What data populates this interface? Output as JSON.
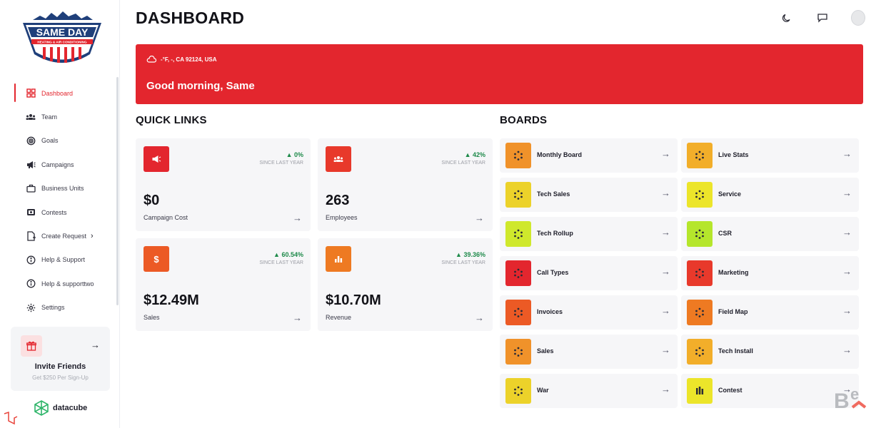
{
  "brand": {
    "logo_top": "SAME DAY",
    "logo_sub": "HEATING & AIR CONDITIONING",
    "partner": "datacube"
  },
  "sidebar": {
    "items": [
      {
        "label": "Dashboard",
        "icon": "grid-icon",
        "active": true
      },
      {
        "label": "Team",
        "icon": "team-icon"
      },
      {
        "label": "Goals",
        "icon": "target-icon"
      },
      {
        "label": "Campaigns",
        "icon": "megaphone-icon"
      },
      {
        "label": "Business Units",
        "icon": "briefcase-icon"
      },
      {
        "label": "Contests",
        "icon": "trophy-icon"
      },
      {
        "label": "Create Request",
        "icon": "document-plus-icon",
        "has_submenu": true
      },
      {
        "label": "Help & Support",
        "icon": "info-icon"
      },
      {
        "label": "Help & supporttwo",
        "icon": "info-icon"
      },
      {
        "label": "Settings",
        "icon": "gear-icon"
      }
    ],
    "invite": {
      "title": "Invite Friends",
      "subtitle": "Get $250 Per Sign-Up"
    }
  },
  "header": {
    "title": "DASHBOARD"
  },
  "banner": {
    "location": "-°F, -, CA 92124, USA",
    "greeting": "Good morning, Same",
    "color": "#e3262e"
  },
  "quick_links": {
    "title": "QUICK LINKS",
    "cards": [
      {
        "value": "$0",
        "label": "Campaign Cost",
        "change": "0%",
        "since": "SINCE LAST YEAR",
        "icon": "megaphone-icon",
        "color": "#e3262e"
      },
      {
        "value": "263",
        "label": "Employees",
        "change": "42%",
        "since": "SINCE LAST YEAR",
        "icon": "team-icon",
        "color": "#e8392b"
      },
      {
        "value": "$12.49M",
        "label": "Sales",
        "change": "60.54%",
        "since": "SINCE LAST YEAR",
        "icon": "dollar-icon",
        "color": "#ec5a25"
      },
      {
        "value": "$10.70M",
        "label": "Revenue",
        "change": "39.36%",
        "since": "SINCE LAST YEAR",
        "icon": "bar-chart-icon",
        "color": "#ee7a22"
      }
    ]
  },
  "boards": {
    "title": "BOARDS",
    "items": [
      {
        "label": "Monthly Board",
        "color": "#f0922a"
      },
      {
        "label": "Live Stats",
        "color": "#f2ae2a"
      },
      {
        "label": "Tech Sales",
        "color": "#ecd22a"
      },
      {
        "label": "Service",
        "color": "#ece52a"
      },
      {
        "label": "Tech Rollup",
        "color": "#cfe82c"
      },
      {
        "label": "CSR",
        "color": "#b5e62c"
      },
      {
        "label": "Call Types",
        "color": "#e3262e"
      },
      {
        "label": "Marketing",
        "color": "#e8392b"
      },
      {
        "label": "Invoices",
        "color": "#ec5a25"
      },
      {
        "label": "Field Map",
        "color": "#ee7a22"
      },
      {
        "label": "Sales",
        "color": "#f0922a"
      },
      {
        "label": "Tech Install",
        "color": "#f2ae2a"
      },
      {
        "label": "War",
        "color": "#ecd22a"
      },
      {
        "label": "Contest",
        "color": "#ece52a"
      }
    ]
  }
}
